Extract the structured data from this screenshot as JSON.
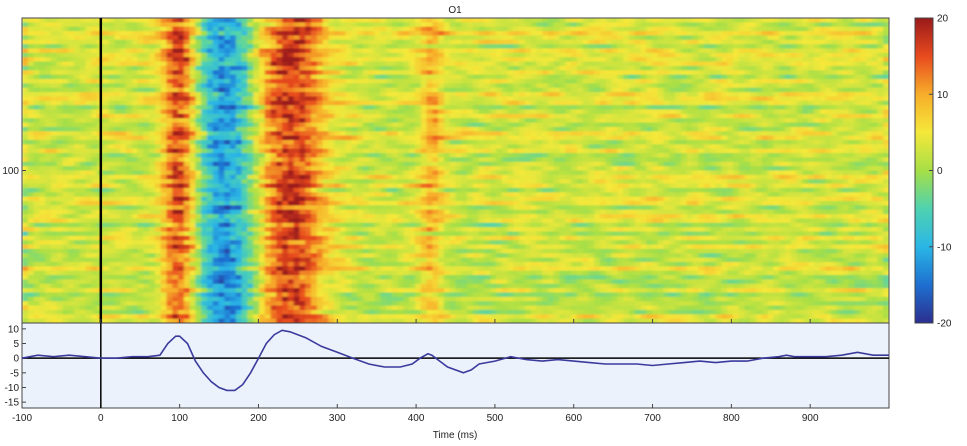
{
  "chart_data": [
    {
      "type": "heatmap",
      "title": "O1",
      "x_range": [
        -100,
        1000
      ],
      "y_tick_labels": [
        "100"
      ],
      "y_ticks": [
        100
      ],
      "y_range": [
        0,
        200
      ],
      "colorbar": {
        "range": [
          -20,
          20
        ],
        "tick_labels": [
          "20",
          "10",
          "0",
          "-10",
          "-20"
        ],
        "ticks": [
          20,
          10,
          0,
          -10,
          -20
        ],
        "colors": [
          "#2b2f8f",
          "#1e6fd0",
          "#2ab6e6",
          "#4fd2b0",
          "#a6df46",
          "#f5e83a",
          "#f7ad2a",
          "#e84a1e",
          "#9a1a1a"
        ]
      },
      "stimulus_onset_ms": 0,
      "bands": [
        {
          "center_ms": 100,
          "width_ms": 22,
          "value": 13
        },
        {
          "center_ms": 160,
          "width_ms": 40,
          "value": -15
        },
        {
          "center_ms": 240,
          "width_ms": 45,
          "value": 14
        },
        {
          "center_ms": 420,
          "width_ms": 15,
          "value": 6
        }
      ]
    },
    {
      "type": "line",
      "xlabel": "Time (ms)",
      "x_tick_labels": [
        "-100",
        "0",
        "100",
        "200",
        "300",
        "400",
        "500",
        "600",
        "700",
        "800",
        "900"
      ],
      "y_tick_labels": [
        "10",
        "5",
        "0",
        "-5",
        "-10",
        "-15"
      ],
      "y_ticks": [
        10,
        5,
        0,
        -5,
        -10,
        -15
      ],
      "ylim": [
        -17,
        12
      ],
      "xlim": [
        -100,
        1000
      ],
      "grid": false,
      "series": [
        {
          "color": "#3b3b9e",
          "x": [
            -100,
            -80,
            -60,
            -40,
            -20,
            0,
            20,
            40,
            60,
            75,
            85,
            95,
            100,
            110,
            120,
            130,
            140,
            150,
            160,
            170,
            180,
            190,
            200,
            210,
            220,
            230,
            240,
            260,
            280,
            300,
            320,
            340,
            360,
            380,
            395,
            405,
            415,
            420,
            430,
            440,
            460,
            470,
            480,
            500,
            520,
            540,
            560,
            580,
            600,
            620,
            640,
            660,
            680,
            700,
            720,
            740,
            760,
            780,
            800,
            820,
            840,
            860,
            870,
            880,
            900,
            920,
            940,
            960,
            980,
            1000
          ],
          "y": [
            0,
            1,
            0.5,
            1,
            0.5,
            0,
            0,
            0.5,
            0.5,
            1,
            5,
            7.5,
            7.5,
            5,
            -1,
            -5,
            -8,
            -10,
            -11,
            -11,
            -9,
            -5,
            0,
            5,
            8,
            9.5,
            9,
            7,
            4,
            2,
            0,
            -2,
            -3,
            -3,
            -2,
            0,
            1.5,
            1,
            -1,
            -3,
            -5,
            -4,
            -2,
            -1,
            0.5,
            -0.5,
            -1,
            -0.5,
            -1,
            -1.5,
            -2,
            -2,
            -2,
            -2.5,
            -2,
            -1.5,
            -1,
            -1.5,
            -1,
            -1,
            0,
            0.5,
            1,
            0.5,
            0.5,
            0.5,
            1,
            2,
            1,
            1
          ]
        }
      ]
    }
  ]
}
